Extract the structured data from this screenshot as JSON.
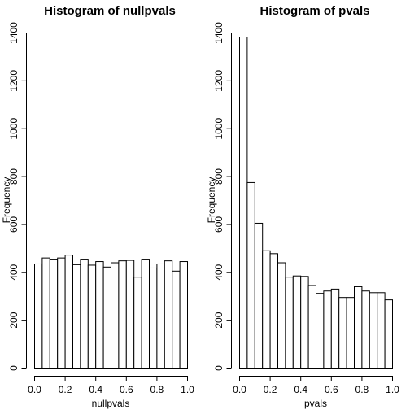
{
  "chart_data": [
    {
      "type": "bar",
      "title": "Histogram of nullpvals",
      "xlabel": "nullpvals",
      "ylabel": "Frequency",
      "bin_width": 0.05,
      "bin_start": 0.0,
      "xlim": [
        0,
        1
      ],
      "ylim": [
        0,
        1400
      ],
      "x_ticks": [
        "0.0",
        "0.2",
        "0.4",
        "0.6",
        "0.8",
        "1.0"
      ],
      "y_ticks": [
        "0",
        "200",
        "400",
        "600",
        "800",
        "1000",
        "1200",
        "1400"
      ],
      "values": [
        435,
        460,
        455,
        460,
        472,
        432,
        455,
        430,
        445,
        422,
        440,
        448,
        450,
        380,
        455,
        418,
        435,
        448,
        405,
        445
      ]
    },
    {
      "type": "bar",
      "title": "Histogram of pvals",
      "xlabel": "pvals",
      "ylabel": "Frequency",
      "bin_width": 0.05,
      "bin_start": 0.0,
      "xlim": [
        0,
        1
      ],
      "ylim": [
        0,
        1400
      ],
      "x_ticks": [
        "0.0",
        "0.2",
        "0.4",
        "0.6",
        "0.8",
        "1.0"
      ],
      "y_ticks": [
        "0",
        "200",
        "400",
        "600",
        "800",
        "1000",
        "1200",
        "1400"
      ],
      "values": [
        1383,
        775,
        605,
        490,
        478,
        440,
        380,
        385,
        383,
        345,
        312,
        322,
        330,
        295,
        295,
        340,
        322,
        315,
        315,
        285
      ]
    }
  ]
}
